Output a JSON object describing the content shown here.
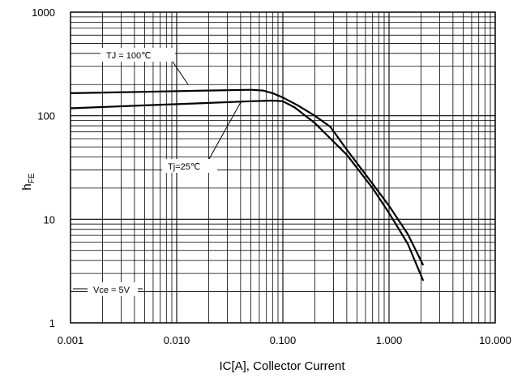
{
  "chart_data": {
    "type": "line",
    "x_scale": "log",
    "y_scale": "log",
    "xlim": [
      0.001,
      10
    ],
    "ylim": [
      1,
      1000
    ],
    "xlabel": "IC[A], Collector Current",
    "ylabel_main": "h",
    "ylabel_sub": "FE",
    "x_ticks": [
      {
        "value": 0.001,
        "label": "0.001"
      },
      {
        "value": 0.01,
        "label": "0.010"
      },
      {
        "value": 0.1,
        "label": "0.100"
      },
      {
        "value": 1,
        "label": "1.000"
      },
      {
        "value": 10,
        "label": "10.000"
      }
    ],
    "y_ticks": [
      {
        "value": 1,
        "label": "1"
      },
      {
        "value": 10,
        "label": "10"
      },
      {
        "value": 100,
        "label": "100"
      },
      {
        "value": 1000,
        "label": "1000"
      }
    ],
    "grid": true,
    "series": [
      {
        "name": "TJ = 100℃",
        "points": [
          [
            0.001,
            165
          ],
          [
            0.005,
            170
          ],
          [
            0.02,
            175
          ],
          [
            0.05,
            178
          ],
          [
            0.065,
            175
          ],
          [
            0.08,
            165
          ],
          [
            0.1,
            150
          ],
          [
            0.14,
            125
          ],
          [
            0.2,
            100
          ],
          [
            0.28,
            78
          ],
          [
            0.4,
            47
          ],
          [
            0.7,
            22
          ],
          [
            1.0,
            13.5
          ],
          [
            1.5,
            7.2
          ],
          [
            2.1,
            3.6
          ]
        ]
      },
      {
        "name": "Tj=25℃",
        "points": [
          [
            0.001,
            118
          ],
          [
            0.005,
            126
          ],
          [
            0.02,
            133
          ],
          [
            0.05,
            138
          ],
          [
            0.08,
            140
          ],
          [
            0.1,
            138
          ],
          [
            0.13,
            120
          ],
          [
            0.2,
            85
          ],
          [
            0.4,
            42
          ],
          [
            0.7,
            20
          ],
          [
            1.0,
            11.5
          ],
          [
            1.5,
            5.8
          ],
          [
            2.1,
            2.55
          ]
        ]
      }
    ],
    "annotations": [
      {
        "text": "TJ = 100℃",
        "target": [
          0.032,
          176
        ]
      },
      {
        "text": "Tj=25℃",
        "target": [
          0.042,
          137
        ]
      },
      {
        "text": "Vce = 5V"
      }
    ]
  }
}
